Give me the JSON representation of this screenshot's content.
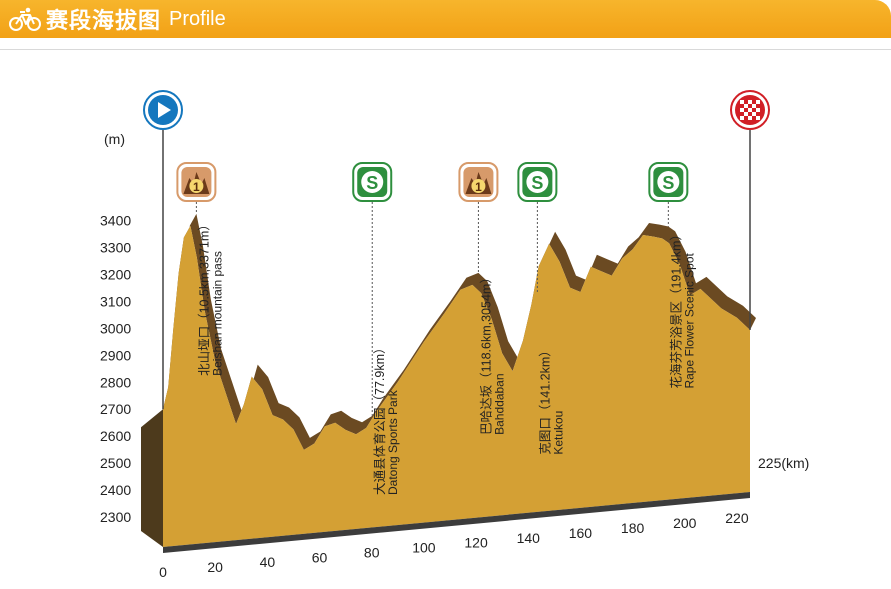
{
  "header": {
    "title_cn": "赛段海拔图",
    "title_en": "Profile",
    "icon": "bicycle-icon"
  },
  "colors": {
    "header": "#f2a116",
    "profile_face": "#d4a034",
    "profile_top": "#6b4a22",
    "profile_side": "#4d3a1c",
    "start_marker": "#1477be",
    "finish_marker": "#d11f26",
    "kom_badge": "#d79a6a",
    "sprint_badge": "#2e8f3e"
  },
  "chart_data": {
    "type": "area",
    "title": "",
    "ylabel": "(m)",
    "xlabel": "225(km)",
    "ylim": [
      2300,
      3400
    ],
    "xlim": [
      0,
      225
    ],
    "y_ticks": [
      3400,
      3300,
      3200,
      3100,
      3000,
      2900,
      2800,
      2700,
      2600,
      2500,
      2400,
      2300
    ],
    "x_ticks": [
      0,
      20,
      40,
      60,
      80,
      100,
      120,
      140,
      160,
      180,
      200,
      220
    ],
    "profile": [
      {
        "km": 0,
        "alt": 2700
      },
      {
        "km": 2,
        "alt": 2780
      },
      {
        "km": 4,
        "alt": 3000
      },
      {
        "km": 6,
        "alt": 3200
      },
      {
        "km": 8,
        "alt": 3330
      },
      {
        "km": 10.5,
        "alt": 3371
      },
      {
        "km": 13,
        "alt": 3250
      },
      {
        "km": 16,
        "alt": 3050
      },
      {
        "km": 20,
        "alt": 2860
      },
      {
        "km": 24,
        "alt": 2740
      },
      {
        "km": 28,
        "alt": 2620
      },
      {
        "km": 31,
        "alt": 2690
      },
      {
        "km": 34,
        "alt": 2790
      },
      {
        "km": 38,
        "alt": 2740
      },
      {
        "km": 42,
        "alt": 2640
      },
      {
        "km": 46,
        "alt": 2620
      },
      {
        "km": 50,
        "alt": 2580
      },
      {
        "km": 54,
        "alt": 2500
      },
      {
        "km": 58,
        "alt": 2520
      },
      {
        "km": 62,
        "alt": 2580
      },
      {
        "km": 66,
        "alt": 2590
      },
      {
        "km": 70,
        "alt": 2560
      },
      {
        "km": 74,
        "alt": 2540
      },
      {
        "km": 77.9,
        "alt": 2560
      },
      {
        "km": 82,
        "alt": 2620
      },
      {
        "km": 90,
        "alt": 2720
      },
      {
        "km": 100,
        "alt": 2860
      },
      {
        "km": 108,
        "alt": 2960
      },
      {
        "km": 114,
        "alt": 3040
      },
      {
        "km": 118.6,
        "alt": 3054
      },
      {
        "km": 122,
        "alt": 3020
      },
      {
        "km": 126,
        "alt": 2920
      },
      {
        "km": 130,
        "alt": 2790
      },
      {
        "km": 134,
        "alt": 2720
      },
      {
        "km": 138,
        "alt": 2830
      },
      {
        "km": 141.2,
        "alt": 2960
      },
      {
        "km": 144,
        "alt": 3100
      },
      {
        "km": 148,
        "alt": 3180
      },
      {
        "km": 152,
        "alt": 3110
      },
      {
        "km": 156,
        "alt": 3010
      },
      {
        "km": 160,
        "alt": 2990
      },
      {
        "km": 164,
        "alt": 3080
      },
      {
        "km": 168,
        "alt": 3060
      },
      {
        "km": 172,
        "alt": 3040
      },
      {
        "km": 176,
        "alt": 3100
      },
      {
        "km": 180,
        "alt": 3130
      },
      {
        "km": 184,
        "alt": 3180
      },
      {
        "km": 188,
        "alt": 3170
      },
      {
        "km": 191.4,
        "alt": 3160
      },
      {
        "km": 194,
        "alt": 3140
      },
      {
        "km": 198,
        "alt": 3060
      },
      {
        "km": 202,
        "alt": 2940
      },
      {
        "km": 206,
        "alt": 2960
      },
      {
        "km": 210,
        "alt": 2920
      },
      {
        "km": 214,
        "alt": 2880
      },
      {
        "km": 220,
        "alt": 2840
      },
      {
        "km": 225,
        "alt": 2790
      }
    ],
    "markers": [
      {
        "type": "start",
        "km": 0,
        "icon": "play-icon"
      },
      {
        "type": "kom",
        "km": 10.5,
        "label": "1",
        "icon": "mountain-icon",
        "cn": "北山垭口（10.5km,3371m）",
        "en": "Beishan mountain pass"
      },
      {
        "type": "sprint",
        "km": 77.9,
        "label": "S",
        "icon": "sprint-icon",
        "cn": "大通县体育公园（77.9km）",
        "en": "Datong Sports Park"
      },
      {
        "type": "kom",
        "km": 118.6,
        "label": "1",
        "icon": "mountain-icon",
        "cn": "巴哈达坂（118.6km,3054m）",
        "en": "Bahddaban"
      },
      {
        "type": "sprint",
        "km": 141.2,
        "label": "S",
        "icon": "sprint-icon",
        "cn": "克图口（141.2km）",
        "en": "Ketukou"
      },
      {
        "type": "sprint",
        "km": 191.4,
        "label": "S",
        "icon": "sprint-icon",
        "cn": "花海芬芳浴景区（191.4km）",
        "en": "Rape Flower Scenic Spot"
      },
      {
        "type": "finish",
        "km": 225,
        "icon": "checkered-flag-icon"
      }
    ]
  }
}
